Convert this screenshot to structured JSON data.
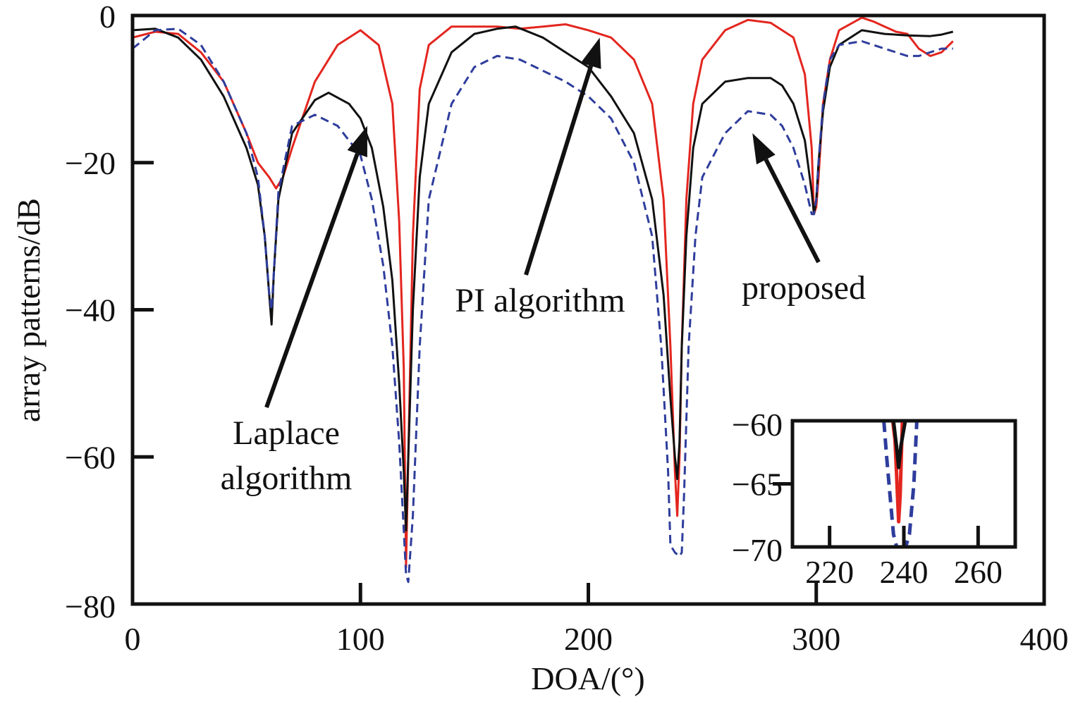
{
  "chart_data": [
    {
      "type": "line",
      "title": "",
      "xlabel": "DOA/(°)",
      "ylabel": "array patterns/dB",
      "xlim": [
        0,
        400
      ],
      "ylim": [
        -80,
        0
      ],
      "xticks": [
        0,
        100,
        200,
        300,
        400
      ],
      "xtick_labels": [
        "0",
        "100",
        "200",
        "300",
        "400"
      ],
      "yticks": [
        0,
        -20,
        -40,
        -60,
        -80
      ],
      "ytick_labels": [
        "0",
        "−20",
        "−40",
        "−60",
        "−80"
      ],
      "grid": false,
      "legend": "none",
      "annotations": [
        {
          "id": "laplace",
          "text_lines": [
            "Laplace",
            "algorithm"
          ],
          "points_to": [
            103,
            -15
          ]
        },
        {
          "id": "pi",
          "text_lines": [
            "PI algorithm"
          ],
          "points_to": [
            205,
            -3
          ]
        },
        {
          "id": "proposed",
          "text_lines": [
            "proposed"
          ],
          "points_to": [
            272,
            -16
          ]
        }
      ],
      "series": [
        {
          "color": "#e3261f",
          "style": "solid",
          "x": [
            0,
            10,
            20,
            30,
            40,
            50,
            55,
            60,
            63,
            66,
            70,
            80,
            90,
            100,
            108,
            114,
            117,
            119,
            120,
            121,
            123,
            126,
            130,
            140,
            150,
            160,
            170,
            180,
            190,
            200,
            210,
            220,
            228,
            233,
            236,
            238,
            239,
            240,
            241,
            243,
            246,
            250,
            260,
            270,
            280,
            290,
            295,
            298,
            299,
            300,
            301,
            303,
            306,
            310,
            320,
            325,
            330,
            335,
            340,
            345,
            350,
            355,
            360
          ],
          "y": [
            -3,
            -2.2,
            -2.5,
            -5,
            -9,
            -16,
            -20,
            -22,
            -23.5,
            -22,
            -18,
            -9,
            -4,
            -2,
            -4,
            -12,
            -28,
            -48,
            -75,
            -60,
            -30,
            -10,
            -4,
            -1.5,
            -1.5,
            -1.5,
            -1.8,
            -1.5,
            -1.2,
            -2,
            -3,
            -6,
            -12,
            -25,
            -45,
            -62,
            -68,
            -60,
            -45,
            -25,
            -12,
            -6,
            -2,
            -0.6,
            -1,
            -3,
            -8,
            -18,
            -27,
            -26,
            -22,
            -12,
            -6,
            -2,
            -0.3,
            -0.8,
            -1.5,
            -2.2,
            -2.5,
            -4.5,
            -5.5,
            -5,
            -3.5
          ]
        },
        {
          "color": "#111111",
          "style": "solid",
          "x": [
            0,
            10,
            20,
            30,
            40,
            50,
            55,
            58,
            60,
            61,
            62,
            64,
            70,
            80,
            86,
            95,
            100,
            105,
            110,
            114,
            117,
            119,
            120,
            121,
            123,
            126,
            130,
            140,
            150,
            160,
            168,
            180,
            190,
            200,
            210,
            220,
            228,
            233,
            236,
            238,
            239,
            240,
            241,
            243,
            246,
            250,
            260,
            270,
            280,
            285,
            290,
            295,
            298,
            299,
            300,
            301,
            303,
            306,
            310,
            320,
            330,
            340,
            350,
            355,
            360
          ],
          "y": [
            -2,
            -1.8,
            -3,
            -6,
            -11,
            -18,
            -23,
            -30,
            -38,
            -42,
            -35,
            -25,
            -16,
            -11.5,
            -10.5,
            -12,
            -14,
            -18,
            -26,
            -36,
            -50,
            -62,
            -70,
            -60,
            -40,
            -22,
            -12,
            -5,
            -2.5,
            -1.8,
            -1.5,
            -3,
            -5,
            -7,
            -11,
            -16,
            -25,
            -38,
            -52,
            -60,
            -63,
            -58,
            -45,
            -30,
            -18,
            -12,
            -9,
            -8.5,
            -8.5,
            -9.5,
            -12,
            -17,
            -24,
            -27,
            -25,
            -20,
            -13,
            -7,
            -4,
            -2,
            -2.5,
            -2.7,
            -2.8,
            -2.6,
            -2.2
          ]
        },
        {
          "color": "#2e3d9c",
          "style": "dashed",
          "x": [
            0,
            10,
            20,
            30,
            40,
            50,
            55,
            58,
            60,
            61,
            62,
            64,
            70,
            80,
            90,
            100,
            105,
            110,
            114,
            117,
            119,
            120,
            121,
            123,
            126,
            130,
            140,
            150,
            160,
            170,
            180,
            190,
            200,
            210,
            220,
            228,
            232,
            235,
            236,
            238,
            240,
            241,
            242,
            244,
            247,
            250,
            260,
            270,
            280,
            285,
            290,
            295,
            298,
            299,
            300,
            301,
            303,
            306,
            310,
            320,
            330,
            340,
            345,
            350,
            355,
            360
          ],
          "y": [
            -4.5,
            -2,
            -1.8,
            -4,
            -9,
            -16,
            -22,
            -30,
            -38,
            -40,
            -35,
            -24,
            -15,
            -13.5,
            -15,
            -19,
            -25,
            -34,
            -45,
            -58,
            -70,
            -76,
            -77,
            -68,
            -45,
            -25,
            -12,
            -7,
            -5.5,
            -6,
            -7.5,
            -9,
            -11,
            -14,
            -20,
            -30,
            -45,
            -62,
            -72,
            -73,
            -73.5,
            -73,
            -65,
            -45,
            -30,
            -22,
            -16,
            -13,
            -13.5,
            -15,
            -18,
            -23,
            -27,
            -27,
            -25,
            -20,
            -12,
            -6,
            -4,
            -3.5,
            -4.5,
            -5.5,
            -5.5,
            -5,
            -4.5,
            -4.5
          ]
        }
      ]
    },
    {
      "type": "line",
      "title": "",
      "xlabel": "",
      "ylabel": "",
      "xlim": [
        210,
        270
      ],
      "ylim": [
        -70,
        -60
      ],
      "xticks": [
        220,
        240,
        260
      ],
      "xtick_labels": [
        "220",
        "240",
        "260"
      ],
      "yticks": [
        -60,
        -65,
        -70
      ],
      "ytick_labels": [
        "−60",
        "−65",
        "−70"
      ],
      "grid": false,
      "legend": "none",
      "series": [
        {
          "color": "#e3261f",
          "style": "solid",
          "x": [
            237.0,
            237.6,
            238.0,
            238.3,
            238.6,
            239.0,
            239.6
          ],
          "y": [
            -60,
            -61.5,
            -64,
            -66,
            -68,
            -66,
            -60
          ]
        },
        {
          "color": "#111111",
          "style": "solid",
          "x": [
            237.2,
            238.0,
            238.6,
            239.2,
            240.4
          ],
          "y": [
            -60,
            -62,
            -63.7,
            -62,
            -60
          ]
        },
        {
          "color": "#2e3d9c",
          "style": "dashed",
          "x": [
            234.6,
            235.4,
            236.3,
            237.2,
            238.5,
            240.0,
            241.5,
            242.7,
            243.5
          ],
          "y": [
            -60,
            -63,
            -66,
            -69,
            -70.5,
            -70.5,
            -69,
            -65,
            -60
          ]
        }
      ]
    }
  ]
}
